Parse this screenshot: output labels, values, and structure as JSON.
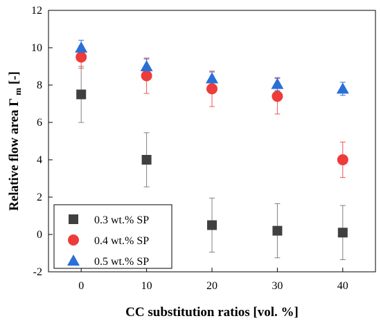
{
  "chart_data": {
    "type": "scatter",
    "title": "",
    "xlabel": "CC substitution ratios [vol. %]",
    "ylabel_main": "Relative flow area Γ",
    "ylabel_sub": "m",
    "ylabel_suffix": " [-]",
    "xlim": [
      -5,
      45
    ],
    "ylim": [
      -2,
      12
    ],
    "x_ticks": [
      0,
      10,
      20,
      30,
      40
    ],
    "y_ticks": [
      -2,
      0,
      2,
      4,
      6,
      8,
      10,
      12
    ],
    "grid": false,
    "legend_position": "bottom-left",
    "series": [
      {
        "name": "0.3 wt.% SP",
        "marker": "square",
        "color": "#404040",
        "errorbar_color": "#808080",
        "x": [
          0,
          10,
          20,
          30,
          40
        ],
        "y": [
          7.5,
          4.0,
          0.5,
          0.2,
          0.1
        ],
        "err": [
          1.5,
          1.45,
          1.45,
          1.45,
          1.45
        ]
      },
      {
        "name": "0.4 wt.% SP",
        "marker": "circle",
        "color": "#ee3b3b",
        "errorbar_color": "#ee5555",
        "x": [
          0,
          10,
          20,
          30,
          40
        ],
        "y": [
          9.5,
          8.5,
          7.8,
          7.4,
          4.0
        ],
        "err": [
          0.6,
          0.95,
          0.95,
          0.95,
          0.95
        ]
      },
      {
        "name": "0.5 wt.% SP",
        "marker": "triangle",
        "color": "#2a6fd6",
        "errorbar_color": "#2a6fd6",
        "x": [
          0,
          10,
          20,
          30,
          40
        ],
        "y": [
          10.0,
          9.0,
          8.35,
          8.05,
          7.8
        ],
        "err": [
          0.4,
          0.4,
          0.35,
          0.35,
          0.35
        ]
      }
    ]
  }
}
